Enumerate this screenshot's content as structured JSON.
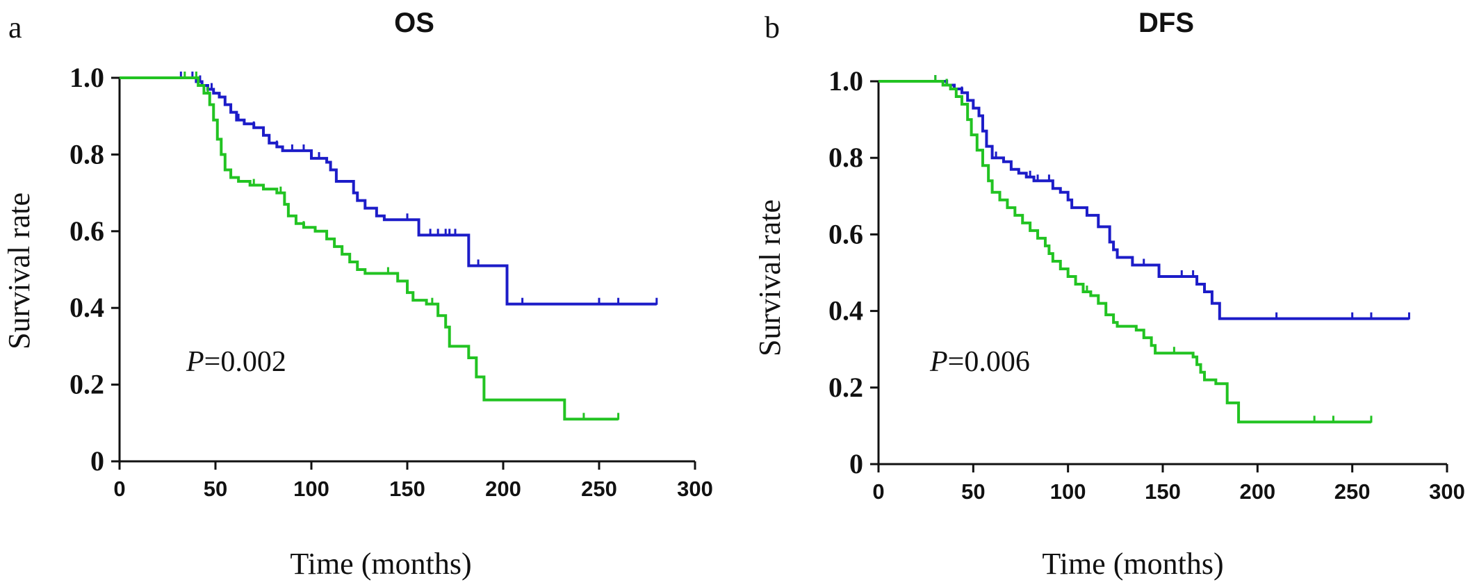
{
  "chart_data": [
    {
      "type": "line",
      "panel_label": "a",
      "title": "OS",
      "xlabel": "Time (months)",
      "ylabel": "Survival rate",
      "xlim": [
        0,
        300
      ],
      "ylim": [
        0,
        1.0
      ],
      "x_ticks": [
        "0",
        "50",
        "100",
        "150",
        "200",
        "250",
        "300"
      ],
      "y_ticks": [
        "0",
        "0.2",
        "0.4",
        "0.6",
        "0.8",
        "1.0"
      ],
      "annotation": {
        "label": "P",
        "value": "=0.002"
      },
      "grid": false,
      "series": [
        {
          "color": "#1c1cc8",
          "steps": [
            [
              0,
              1.0
            ],
            [
              38,
              1.0
            ],
            [
              40,
              0.99
            ],
            [
              43,
              0.98
            ],
            [
              46,
              0.97
            ],
            [
              49,
              0.96
            ],
            [
              52,
              0.95
            ],
            [
              55,
              0.93
            ],
            [
              58,
              0.91
            ],
            [
              61,
              0.89
            ],
            [
              65,
              0.88
            ],
            [
              70,
              0.87
            ],
            [
              75,
              0.85
            ],
            [
              78,
              0.83
            ],
            [
              82,
              0.82
            ],
            [
              85,
              0.81
            ],
            [
              96,
              0.81
            ],
            [
              100,
              0.79
            ],
            [
              108,
              0.78
            ],
            [
              110,
              0.76
            ],
            [
              113,
              0.73
            ],
            [
              120,
              0.73
            ],
            [
              122,
              0.7
            ],
            [
              124,
              0.68
            ],
            [
              128,
              0.66
            ],
            [
              134,
              0.64
            ],
            [
              138,
              0.63
            ],
            [
              150,
              0.63
            ],
            [
              156,
              0.59
            ],
            [
              180,
              0.59
            ],
            [
              182,
              0.51
            ],
            [
              200,
              0.51
            ],
            [
              202,
              0.41
            ],
            [
              280,
              0.41
            ]
          ],
          "censor_x": [
            32,
            38,
            42,
            48,
            62,
            70,
            82,
            90,
            96,
            104,
            150,
            162,
            166,
            170,
            172,
            175,
            187,
            210,
            250,
            260,
            280
          ]
        },
        {
          "color": "#22c322",
          "steps": [
            [
              0,
              1.0
            ],
            [
              38,
              1.0
            ],
            [
              41,
              0.98
            ],
            [
              44,
              0.96
            ],
            [
              47,
              0.93
            ],
            [
              49,
              0.89
            ],
            [
              51,
              0.84
            ],
            [
              53,
              0.8
            ],
            [
              55,
              0.76
            ],
            [
              58,
              0.74
            ],
            [
              62,
              0.73
            ],
            [
              68,
              0.72
            ],
            [
              75,
              0.71
            ],
            [
              82,
              0.7
            ],
            [
              86,
              0.67
            ],
            [
              88,
              0.64
            ],
            [
              92,
              0.62
            ],
            [
              96,
              0.61
            ],
            [
              102,
              0.6
            ],
            [
              108,
              0.58
            ],
            [
              112,
              0.56
            ],
            [
              116,
              0.54
            ],
            [
              120,
              0.52
            ],
            [
              124,
              0.5
            ],
            [
              128,
              0.49
            ],
            [
              140,
              0.49
            ],
            [
              145,
              0.47
            ],
            [
              150,
              0.44
            ],
            [
              153,
              0.42
            ],
            [
              160,
              0.41
            ],
            [
              166,
              0.38
            ],
            [
              170,
              0.35
            ],
            [
              172,
              0.3
            ],
            [
              178,
              0.3
            ],
            [
              182,
              0.27
            ],
            [
              186,
              0.22
            ],
            [
              190,
              0.16
            ],
            [
              230,
              0.16
            ],
            [
              232,
              0.11
            ],
            [
              260,
              0.11
            ]
          ],
          "censor_x": [
            34,
            40,
            46,
            70,
            84,
            96,
            112,
            140,
            163,
            242,
            260
          ]
        }
      ]
    },
    {
      "type": "line",
      "panel_label": "b",
      "title": "DFS",
      "xlabel": "Time (months)",
      "ylabel": "Survival rate",
      "xlim": [
        0,
        300
      ],
      "ylim": [
        0,
        1.0
      ],
      "x_ticks": [
        "0",
        "50",
        "100",
        "150",
        "200",
        "250",
        "300"
      ],
      "y_ticks": [
        "0",
        "0.2",
        "0.4",
        "0.6",
        "0.8",
        "1.0"
      ],
      "annotation": {
        "label": "P",
        "value": "=0.006"
      },
      "grid": false,
      "series": [
        {
          "color": "#1c1cc8",
          "steps": [
            [
              0,
              1.0
            ],
            [
              32,
              1.0
            ],
            [
              36,
              0.99
            ],
            [
              40,
              0.98
            ],
            [
              44,
              0.97
            ],
            [
              47,
              0.95
            ],
            [
              50,
              0.93
            ],
            [
              53,
              0.91
            ],
            [
              55,
              0.87
            ],
            [
              57,
              0.83
            ],
            [
              60,
              0.8
            ],
            [
              66,
              0.79
            ],
            [
              70,
              0.77
            ],
            [
              74,
              0.76
            ],
            [
              78,
              0.75
            ],
            [
              82,
              0.74
            ],
            [
              88,
              0.74
            ],
            [
              92,
              0.72
            ],
            [
              96,
              0.71
            ],
            [
              100,
              0.69
            ],
            [
              102,
              0.67
            ],
            [
              110,
              0.65
            ],
            [
              116,
              0.62
            ],
            [
              120,
              0.62
            ],
            [
              122,
              0.58
            ],
            [
              124,
              0.56
            ],
            [
              126,
              0.54
            ],
            [
              134,
              0.52
            ],
            [
              146,
              0.52
            ],
            [
              148,
              0.49
            ],
            [
              164,
              0.49
            ],
            [
              168,
              0.47
            ],
            [
              172,
              0.45
            ],
            [
              176,
              0.42
            ],
            [
              180,
              0.38
            ],
            [
              280,
              0.38
            ]
          ],
          "censor_x": [
            30,
            36,
            44,
            62,
            80,
            84,
            90,
            110,
            116,
            140,
            160,
            166,
            172,
            210,
            250,
            260,
            280
          ]
        },
        {
          "color": "#22c322",
          "steps": [
            [
              0,
              1.0
            ],
            [
              30,
              1.0
            ],
            [
              34,
              0.99
            ],
            [
              38,
              0.98
            ],
            [
              41,
              0.96
            ],
            [
              44,
              0.94
            ],
            [
              47,
              0.9
            ],
            [
              49,
              0.86
            ],
            [
              52,
              0.82
            ],
            [
              55,
              0.78
            ],
            [
              58,
              0.74
            ],
            [
              60,
              0.71
            ],
            [
              64,
              0.69
            ],
            [
              68,
              0.67
            ],
            [
              72,
              0.65
            ],
            [
              76,
              0.63
            ],
            [
              80,
              0.61
            ],
            [
              84,
              0.59
            ],
            [
              88,
              0.57
            ],
            [
              90,
              0.55
            ],
            [
              92,
              0.53
            ],
            [
              96,
              0.51
            ],
            [
              100,
              0.49
            ],
            [
              104,
              0.47
            ],
            [
              108,
              0.45
            ],
            [
              112,
              0.44
            ],
            [
              116,
              0.42
            ],
            [
              120,
              0.39
            ],
            [
              124,
              0.37
            ],
            [
              126,
              0.36
            ],
            [
              132,
              0.36
            ],
            [
              136,
              0.35
            ],
            [
              140,
              0.33
            ],
            [
              144,
              0.31
            ],
            [
              146,
              0.29
            ],
            [
              162,
              0.29
            ],
            [
              166,
              0.28
            ],
            [
              168,
              0.26
            ],
            [
              170,
              0.24
            ],
            [
              172,
              0.22
            ],
            [
              178,
              0.21
            ],
            [
              184,
              0.16
            ],
            [
              190,
              0.11
            ],
            [
              260,
              0.11
            ]
          ],
          "censor_x": [
            30,
            36,
            110,
            124,
            156,
            230,
            240,
            260
          ]
        }
      ]
    }
  ]
}
